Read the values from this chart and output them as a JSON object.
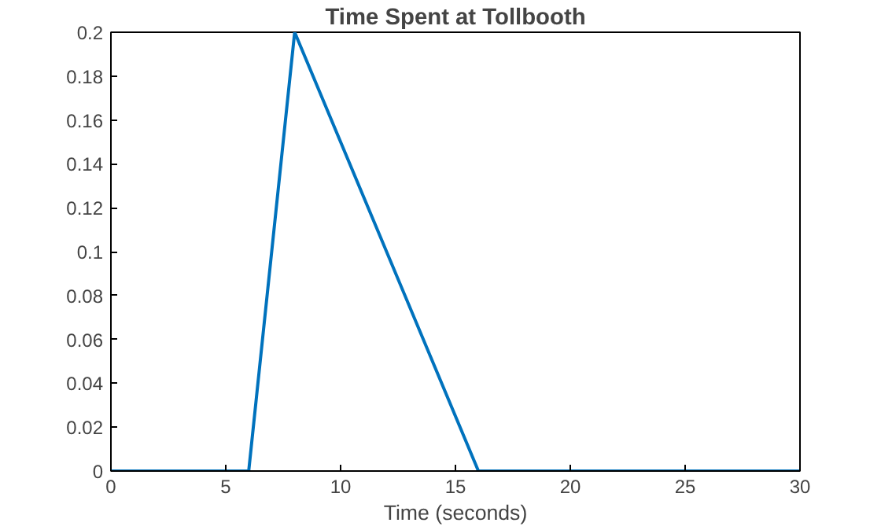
{
  "chart_data": {
    "type": "line",
    "title": "Time Spent at Tollbooth",
    "xlabel": "Time (seconds)",
    "x": [
      0,
      6,
      8,
      16,
      30
    ],
    "series": [
      {
        "color": "#0072bd",
        "values": [
          0,
          0,
          0.2,
          0,
          0
        ]
      }
    ],
    "xlim": [
      0,
      30
    ],
    "xticks": [
      0,
      5,
      10,
      15,
      20,
      25,
      30
    ],
    "ylim": [
      0,
      0.2
    ],
    "yticks": [
      0,
      0.02,
      0.04,
      0.06,
      0.08,
      0.1,
      0.12,
      0.14,
      0.16,
      0.18,
      0.2
    ],
    "grid": false,
    "marker": "none",
    "line_style": "solid"
  }
}
